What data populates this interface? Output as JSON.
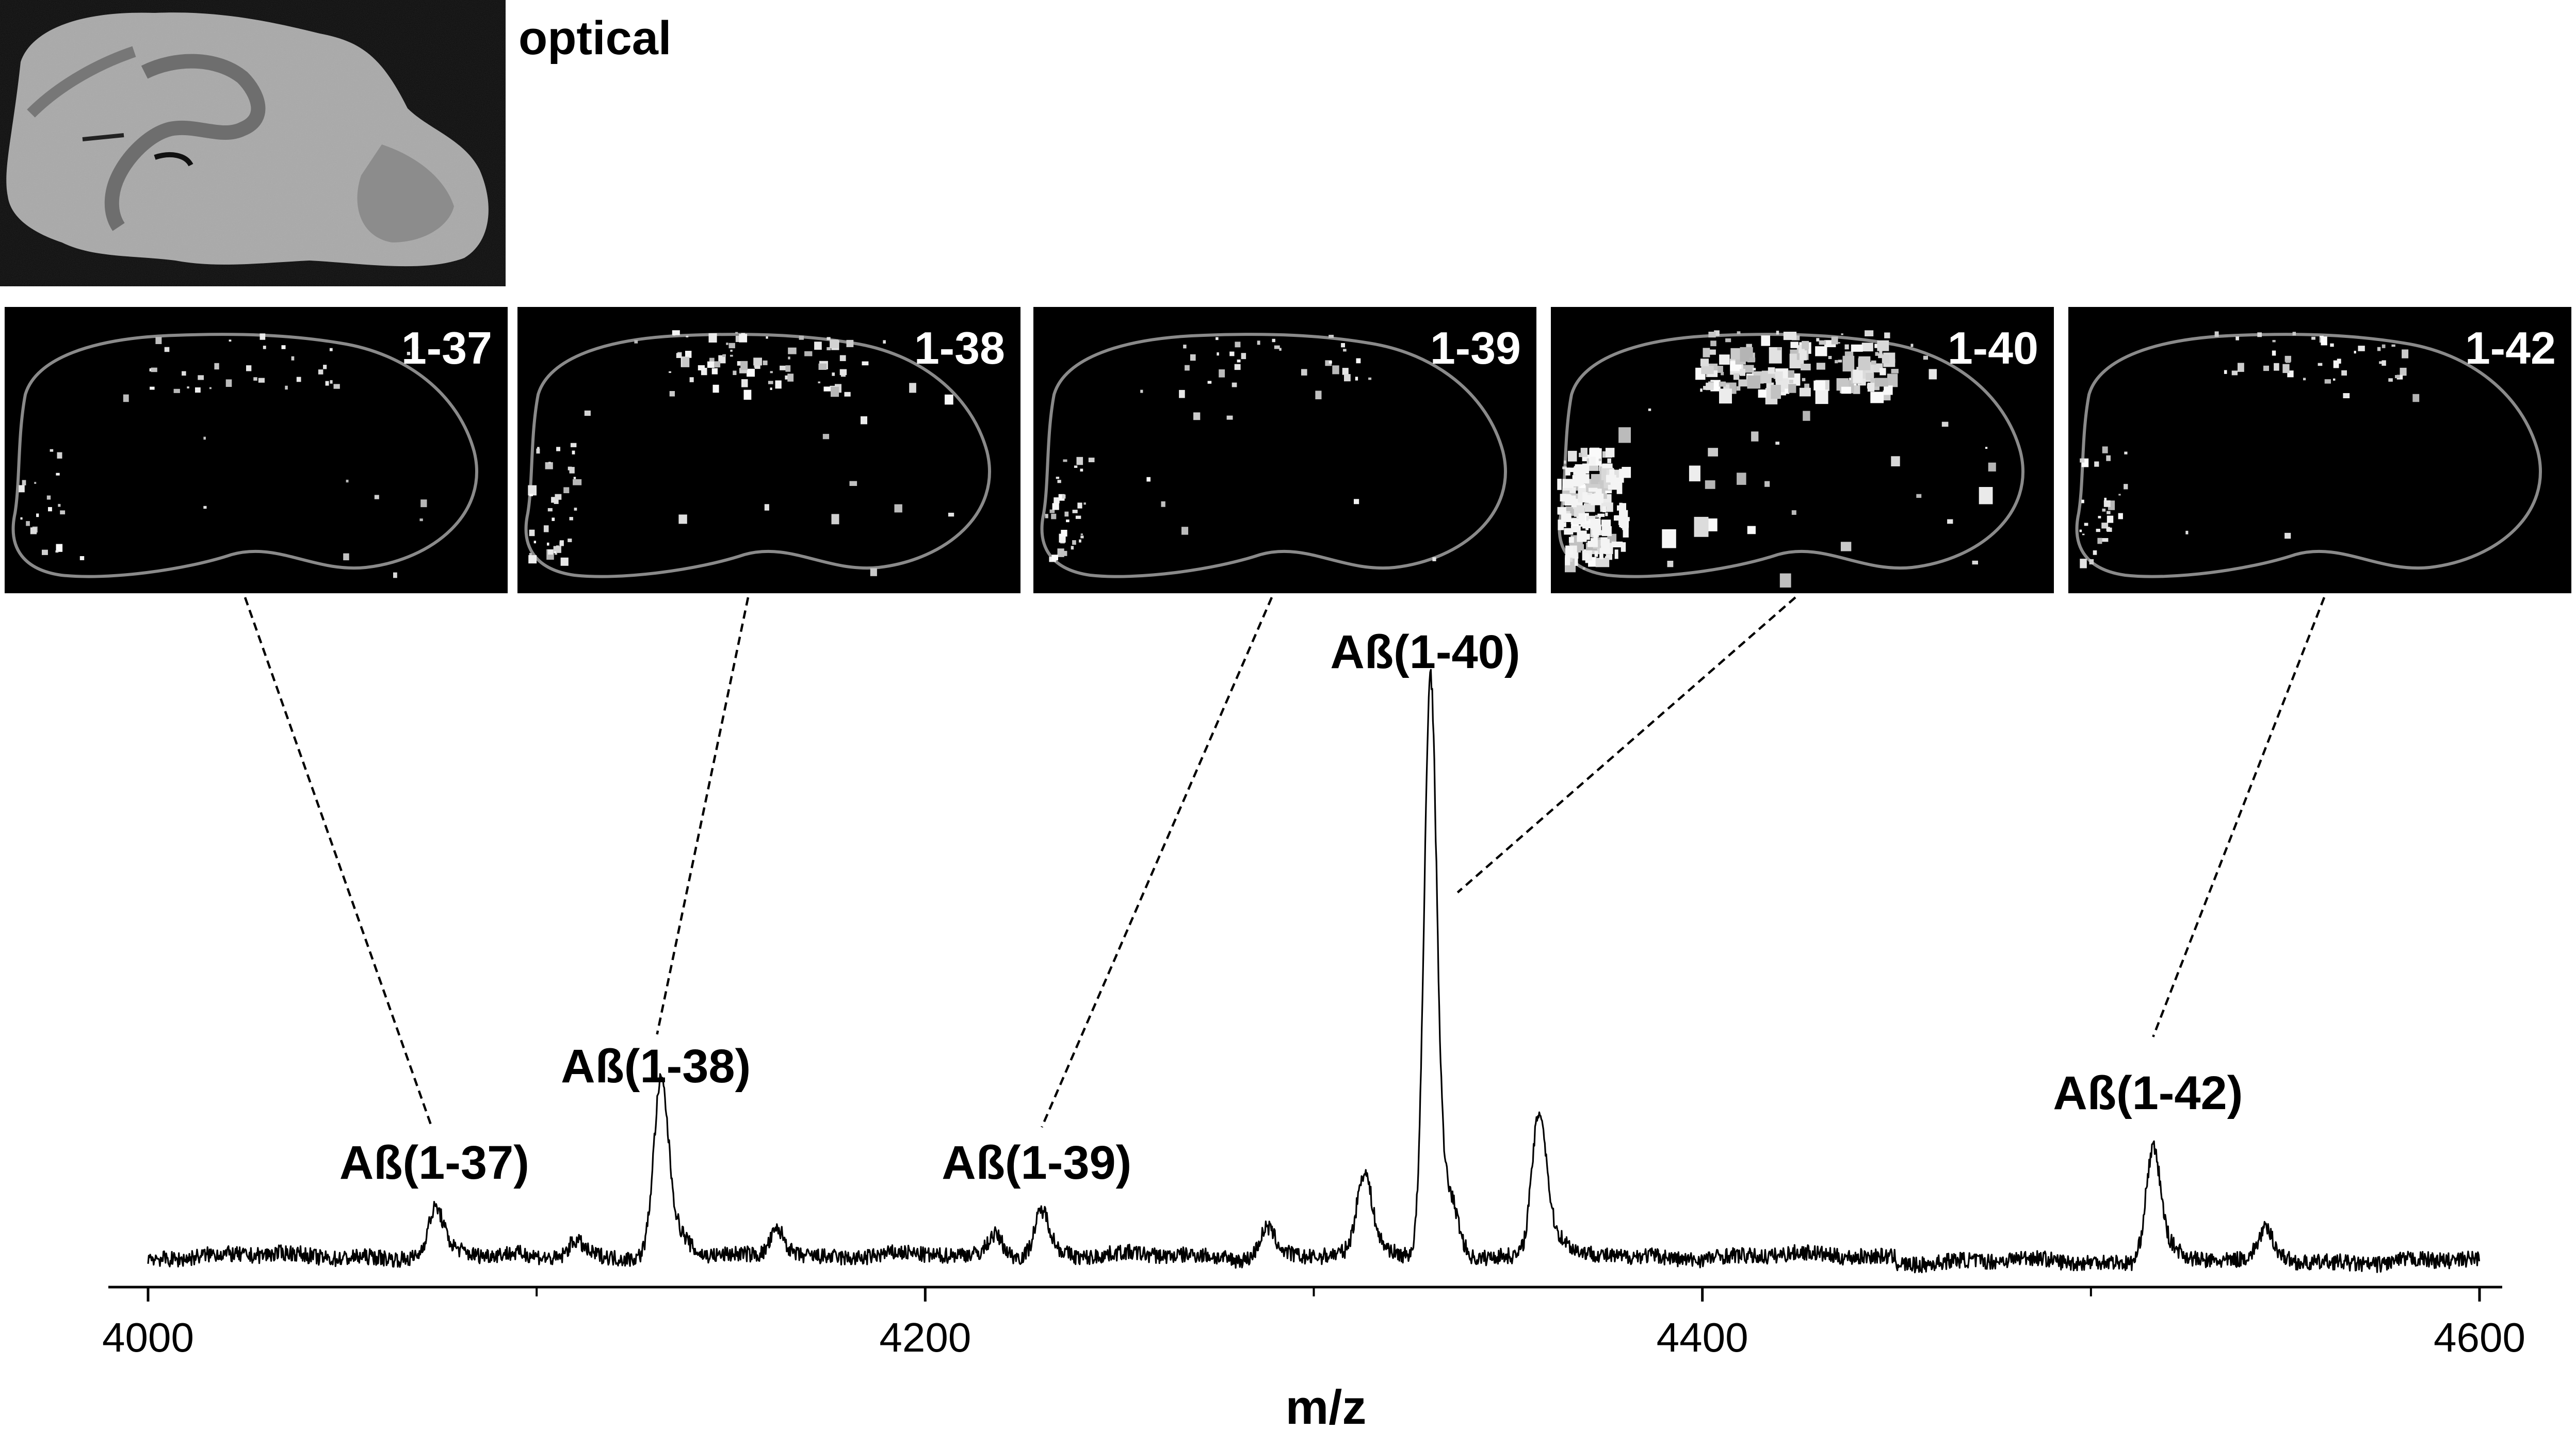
{
  "optical": {
    "label": "optical"
  },
  "panels": [
    {
      "label": "1-37",
      "intensity": 0.15
    },
    {
      "label": "1-38",
      "intensity": 0.4
    },
    {
      "label": "1-39",
      "intensity": 0.2
    },
    {
      "label": "1-40",
      "intensity": 1.0
    },
    {
      "label": "1-42",
      "intensity": 0.2
    }
  ],
  "chart_data": {
    "type": "line",
    "title": "",
    "xlabel": "m/z",
    "ylabel": "",
    "xlim": [
      4000,
      4600
    ],
    "xticks": [
      4000,
      4200,
      4400,
      4600
    ],
    "xticks_minor": [
      4100,
      4300,
      4500
    ],
    "grid": false,
    "series": [
      {
        "peaks": [
          {
            "mz": 4074,
            "height": 0.08,
            "label": "Aß(1-37)",
            "panel": 0
          },
          {
            "mz": 4132,
            "height": 0.3,
            "label": "Aß(1-38)",
            "panel": 1
          },
          {
            "mz": 4230,
            "height": 0.08,
            "label": "Aß(1-39)",
            "panel": 2
          },
          {
            "mz": 4330,
            "height": 1.0,
            "label": "Aß(1-40)",
            "panel": 3
          },
          {
            "mz": 4516,
            "height": 0.2,
            "label": "Aß(1-42)",
            "panel": 4
          },
          {
            "mz": 4110,
            "height": 0.03
          },
          {
            "mz": 4162,
            "height": 0.05
          },
          {
            "mz": 4218,
            "height": 0.04
          },
          {
            "mz": 4288,
            "height": 0.05
          },
          {
            "mz": 4313,
            "height": 0.14
          },
          {
            "mz": 4358,
            "height": 0.25
          },
          {
            "mz": 4545,
            "height": 0.05
          }
        ]
      }
    ]
  }
}
